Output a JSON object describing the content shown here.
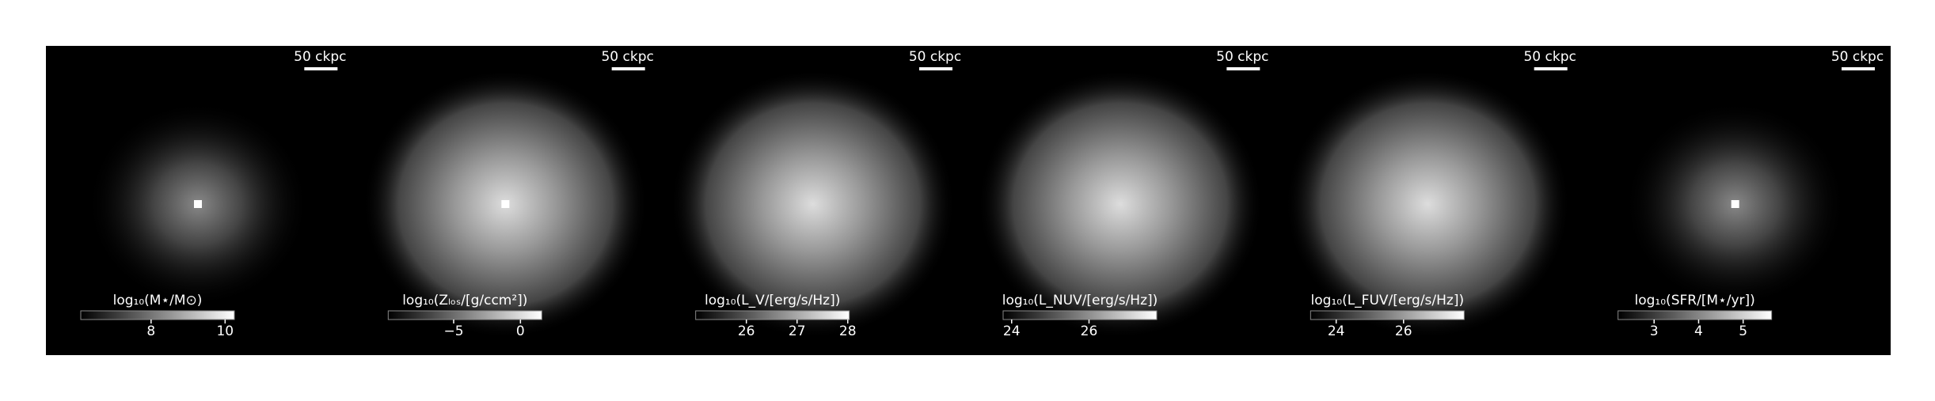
{
  "chart_data": [
    {
      "type": "image",
      "scale_bar": "50 ckpc",
      "colorbar_label": "log₁₀(M⋆/M⊙)",
      "clim": [
        6.1,
        10.25
      ],
      "cticks": [
        8,
        10
      ]
    },
    {
      "type": "image",
      "scale_bar": "50 ckpc",
      "colorbar_label": "log₁₀(Zₗₒₛ/[g/ccm²])",
      "clim": [
        -9.9,
        1.6
      ],
      "cticks": [
        {
          "value": -5,
          "label": "−5"
        },
        0
      ]
    },
    {
      "type": "image",
      "scale_bar": "50 ckpc",
      "colorbar_label": "log₁₀(L_V/[erg/s/Hz])",
      "clim": [
        25.0,
        28.03
      ],
      "cticks": [
        26,
        27,
        28
      ]
    },
    {
      "type": "image",
      "scale_bar": "50 ckpc",
      "colorbar_label": "log₁₀(L_NUV/[erg/s/Hz])",
      "clim": [
        23.78,
        27.75
      ],
      "cticks": [
        24,
        26
      ]
    },
    {
      "type": "image",
      "scale_bar": "50 ckpc",
      "colorbar_label": "log₁₀(L_FUV/[erg/s/Hz])",
      "clim": [
        23.24,
        27.8
      ],
      "cticks": [
        24,
        26
      ]
    },
    {
      "type": "image",
      "scale_bar": "50 ckpc",
      "colorbar_label": "log₁₀(SFR/[M⋆/yr])",
      "clim": [
        2.19,
        5.64
      ],
      "cticks": [
        3,
        4,
        5
      ]
    }
  ]
}
